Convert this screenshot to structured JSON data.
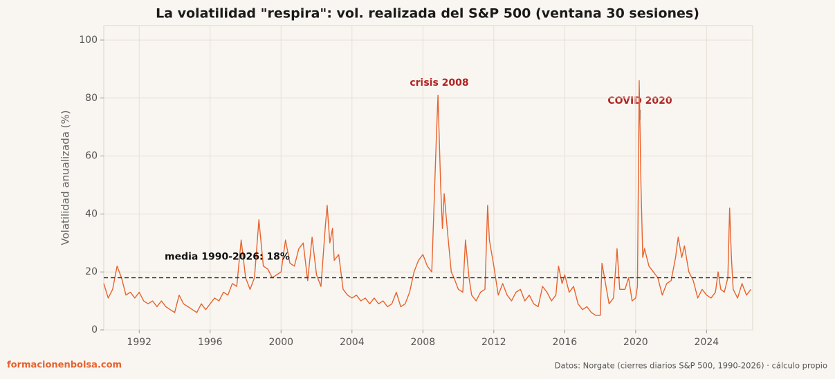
{
  "chart_data": {
    "type": "line",
    "title": "La volatilidad \"respira\": vol. realizada del S&P 500 (ventana 30 sesiones)",
    "y_label": "Volatilidad anualizada (%)",
    "color": "#e8622c",
    "grid": true,
    "xlim": [
      1990,
      2026.6
    ],
    "ylim": [
      0,
      105
    ],
    "xticks": [
      1992,
      1996,
      2000,
      2004,
      2008,
      2012,
      2016,
      2020,
      2024
    ],
    "yticks": [
      0,
      20,
      40,
      60,
      80,
      100
    ],
    "reference_line": {
      "value": 18,
      "label": "media 1990-2026: 18%"
    },
    "annotations": [
      "crisis 2008",
      "COVID 2020"
    ],
    "brand": "formacionenbolsa.com",
    "source": "Datos: Norgate (cierres diarios S&P 500, 1990-2026) · cálculo propio",
    "x": [
      1990.0,
      1990.25,
      1990.5,
      1990.75,
      1991.0,
      1991.25,
      1991.5,
      1991.75,
      1992.0,
      1992.25,
      1992.5,
      1992.75,
      1993.0,
      1993.25,
      1993.5,
      1993.75,
      1994.0,
      1994.25,
      1994.5,
      1994.75,
      1995.0,
      1995.25,
      1995.5,
      1995.75,
      1996.0,
      1996.25,
      1996.5,
      1996.75,
      1997.0,
      1997.25,
      1997.5,
      1997.75,
      1998.0,
      1998.25,
      1998.5,
      1998.75,
      1999.0,
      1999.25,
      1999.5,
      1999.75,
      2000.0,
      2000.25,
      2000.5,
      2000.75,
      2001.0,
      2001.25,
      2001.5,
      2001.75,
      2002.0,
      2002.25,
      2002.5,
      2002.6,
      2002.75,
      2002.9,
      2003.0,
      2003.25,
      2003.5,
      2003.75,
      2004.0,
      2004.25,
      2004.5,
      2004.75,
      2005.0,
      2005.25,
      2005.5,
      2005.75,
      2006.0,
      2006.25,
      2006.5,
      2006.75,
      2007.0,
      2007.25,
      2007.5,
      2007.75,
      2008.0,
      2008.25,
      2008.5,
      2008.75,
      2008.85,
      2009.0,
      2009.1,
      2009.2,
      2009.4,
      2009.6,
      2009.75,
      2010.0,
      2010.25,
      2010.4,
      2010.6,
      2010.75,
      2011.0,
      2011.25,
      2011.5,
      2011.65,
      2011.75,
      2012.0,
      2012.25,
      2012.5,
      2012.75,
      2013.0,
      2013.25,
      2013.5,
      2013.75,
      2014.0,
      2014.25,
      2014.5,
      2014.75,
      2015.0,
      2015.25,
      2015.5,
      2015.65,
      2015.85,
      2016.0,
      2016.25,
      2016.5,
      2016.75,
      2017.0,
      2017.25,
      2017.5,
      2017.75,
      2018.0,
      2018.1,
      2018.3,
      2018.5,
      2018.75,
      2018.95,
      2019.1,
      2019.4,
      2019.6,
      2019.8,
      2020.0,
      2020.1,
      2020.2,
      2020.3,
      2020.4,
      2020.5,
      2020.75,
      2021.0,
      2021.25,
      2021.5,
      2021.75,
      2022.0,
      2022.25,
      2022.4,
      2022.6,
      2022.75,
      2023.0,
      2023.25,
      2023.5,
      2023.75,
      2024.0,
      2024.25,
      2024.5,
      2024.65,
      2024.8,
      2025.0,
      2025.2,
      2025.3,
      2025.4,
      2025.5,
      2025.75,
      2026.0,
      2026.25,
      2026.5
    ],
    "values": [
      16,
      11,
      14,
      22,
      18,
      12,
      13,
      11,
      13,
      10,
      9,
      10,
      8,
      10,
      8,
      7,
      6,
      12,
      9,
      8,
      7,
      6,
      9,
      7,
      9,
      11,
      10,
      13,
      12,
      16,
      15,
      31,
      18,
      14,
      18,
      38,
      22,
      21,
      18,
      19,
      20,
      31,
      23,
      22,
      28,
      30,
      17,
      32,
      19,
      15,
      36,
      43,
      30,
      35,
      24,
      26,
      14,
      12,
      11,
      12,
      10,
      11,
      9,
      11,
      9,
      10,
      8,
      9,
      13,
      8,
      9,
      13,
      20,
      24,
      26,
      22,
      20,
      65,
      81,
      50,
      35,
      47,
      33,
      20,
      18,
      14,
      13,
      31,
      18,
      12,
      10,
      13,
      14,
      43,
      31,
      22,
      12,
      16,
      12,
      10,
      13,
      14,
      10,
      12,
      9,
      8,
      15,
      13,
      10,
      12,
      22,
      16,
      19,
      13,
      15,
      9,
      7,
      8,
      6,
      5,
      5,
      23,
      16,
      9,
      11,
      28,
      14,
      14,
      18,
      10,
      11,
      15,
      86,
      50,
      25,
      28,
      22,
      20,
      18,
      12,
      16,
      17,
      25,
      32,
      25,
      29,
      20,
      17,
      11,
      14,
      12,
      11,
      13,
      20,
      14,
      13,
      18,
      42,
      25,
      14,
      11,
      16,
      12,
      14
    ]
  }
}
